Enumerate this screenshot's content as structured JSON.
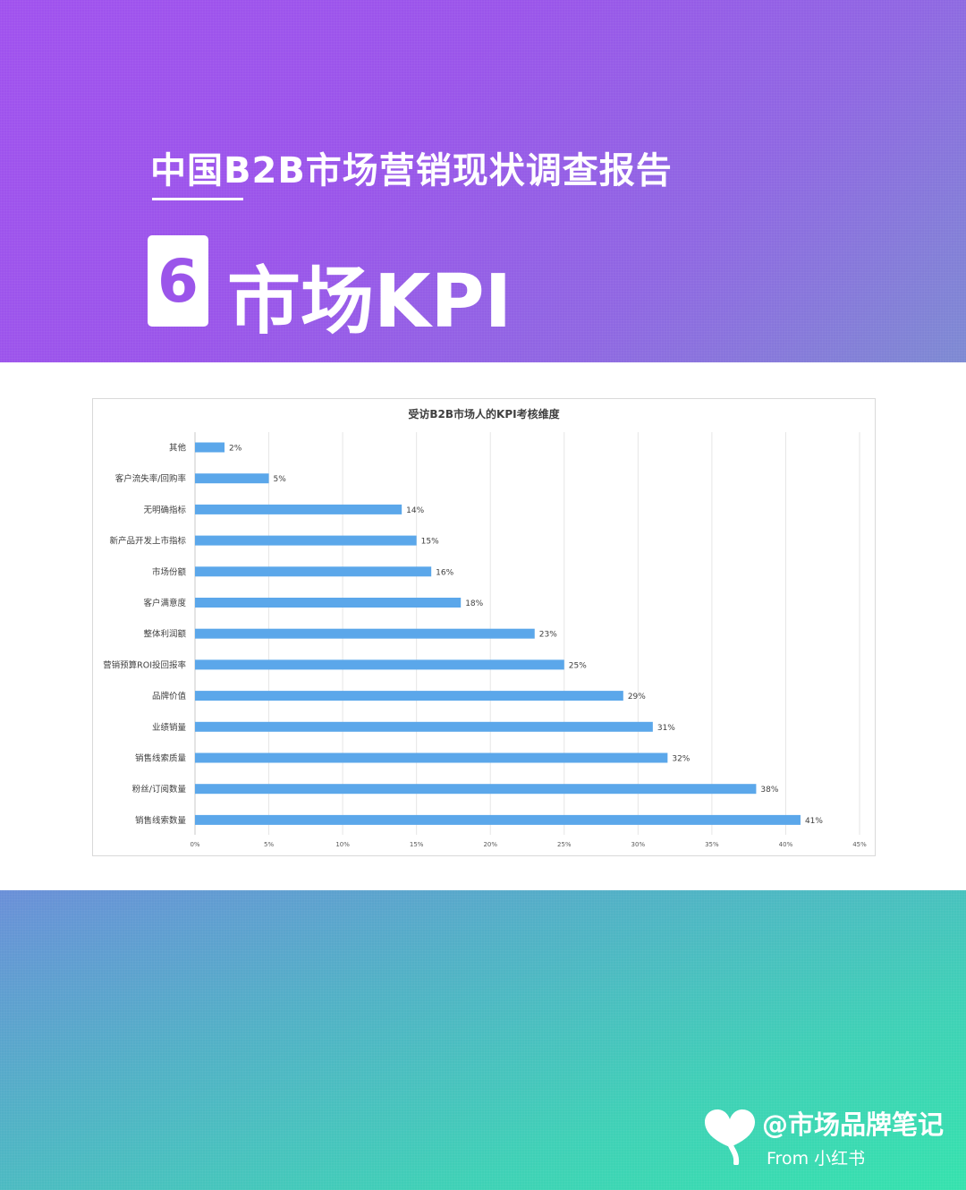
{
  "header": {
    "report_title": "中国B2B市场营销现状调查报告",
    "section_number": "6",
    "section_title": "市场KPI"
  },
  "footer": {
    "handle": "@市场品牌笔记",
    "source": "From 小红书"
  },
  "colors": {
    "bar": "#5ba7ea",
    "top_gradient": [
      "#a052ee",
      "#7d8ad2"
    ],
    "bottom_gradient": [
      "#6a8fd8",
      "#35e2ad"
    ]
  },
  "chart_data": {
    "type": "bar",
    "orientation": "horizontal",
    "title": "受访B2B市场人的KPI考核维度",
    "categories": [
      "其他",
      "客户流失率/回购率",
      "无明确指标",
      "新产品开发上市指标",
      "市场份额",
      "客户满意度",
      "整体利润额",
      "营销预算ROI投回报率",
      "品牌价值",
      "业绩销量",
      "销售线索质量",
      "粉丝/订阅数量",
      "销售线索数量"
    ],
    "values": [
      2,
      5,
      14,
      15,
      16,
      18,
      23,
      25,
      29,
      31,
      32,
      38,
      41
    ],
    "data_labels": [
      "2%",
      "5%",
      "14%",
      "15%",
      "16%",
      "18%",
      "23%",
      "25%",
      "29%",
      "31%",
      "32%",
      "38%",
      "41%"
    ],
    "xlim": [
      0,
      45
    ],
    "x_ticks": [
      "0%",
      "5%",
      "10%",
      "15%",
      "20%",
      "25%",
      "30%",
      "35%",
      "40%",
      "45%"
    ],
    "grid": true,
    "legend": "none"
  }
}
